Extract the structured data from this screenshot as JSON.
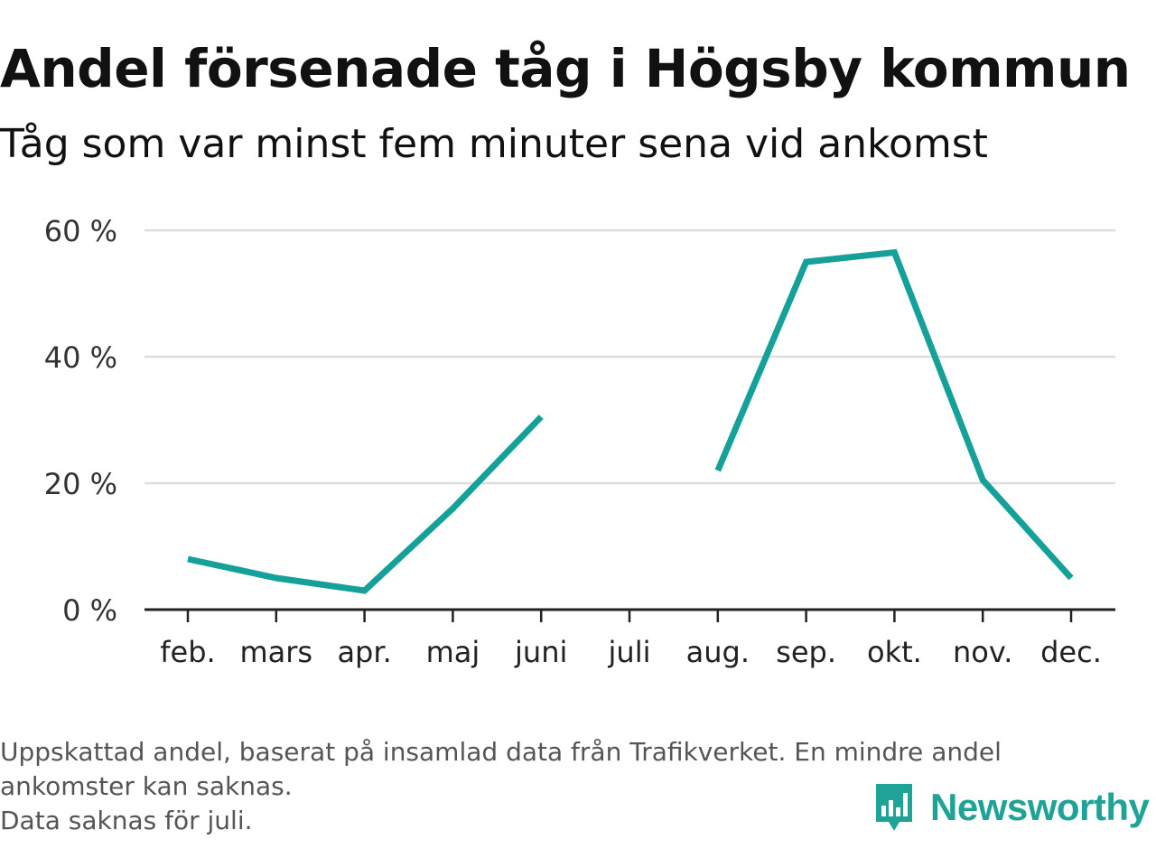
{
  "header": {
    "title": "Andel försenade tåg i Högsby kommun",
    "subtitle": "Tåg som var minst fem minuter sena vid ankomst"
  },
  "chart_data": {
    "type": "line",
    "title": "Andel försenade tåg i Högsby kommun",
    "subtitle": "Tåg som var minst fem minuter sena vid ankomst",
    "xlabel": "",
    "ylabel": "",
    "categories": [
      "feb.",
      "mars",
      "apr.",
      "maj",
      "juni",
      "juli",
      "aug.",
      "sep.",
      "okt.",
      "nov.",
      "dec."
    ],
    "series": [
      {
        "values": [
          8,
          5,
          3,
          16,
          30.5,
          null,
          22,
          55,
          56.5,
          20.5,
          5
        ],
        "color": "#15a199"
      }
    ],
    "ylim": [
      0,
      60
    ],
    "yticks": [
      0,
      20,
      40,
      60
    ],
    "ytick_labels": [
      "0 %",
      "20 %",
      "40 %",
      "60 %"
    ],
    "grid": true,
    "legend": "none"
  },
  "footnote": {
    "lines": [
      "Uppskattad andel, baserat på insamlad data från Trafikverket. En mindre andel",
      "ankomster kan saknas.",
      "Data saknas för juli."
    ]
  },
  "brand": {
    "name": "Newsworthy",
    "logo_icon": "bar-chart-speech-bubble-icon",
    "color": "#1fa396"
  },
  "colors": {
    "line": "#15a199",
    "grid": "#dddddd",
    "axis": "#222222",
    "text": "#111111",
    "footnote": "#555555"
  }
}
